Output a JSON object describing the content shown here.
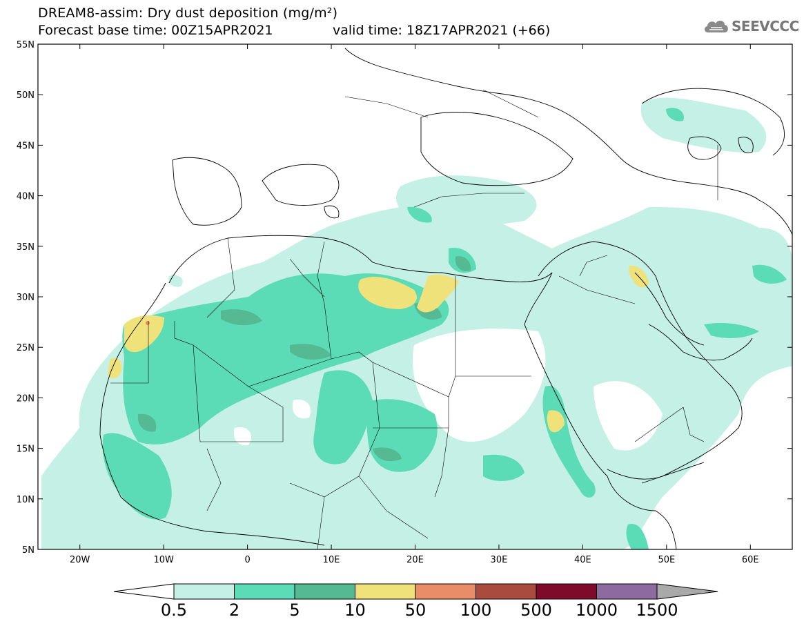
{
  "title": {
    "line1": "DREAM8-assim: Dry dust deposition (mg/m²)",
    "base_time": "Forecast base time: 00Z15APR2021",
    "valid_time": "valid time: 18Z17APR2021 (+66)"
  },
  "logo": {
    "text": "SEEVCCC",
    "icon": "cloud-icon"
  },
  "axes": {
    "x_ticks": [
      "20W",
      "10W",
      "0",
      "10E",
      "20E",
      "30E",
      "40E",
      "50E",
      "60E"
    ],
    "y_ticks": [
      "55N",
      "50N",
      "45N",
      "40N",
      "35N",
      "30N",
      "25N",
      "20N",
      "15N",
      "10N",
      "5N"
    ],
    "lon_range": [
      -25,
      65
    ],
    "lat_range": [
      5,
      55
    ]
  },
  "colorbar": {
    "labels": [
      "0.5",
      "2",
      "5",
      "10",
      "50",
      "100",
      "500",
      "1000",
      "1500"
    ],
    "colors": [
      "#c4f0e6",
      "#5cdcb6",
      "#55b994",
      "#f0e27a",
      "#e88d68",
      "#a94b3f",
      "#7e0b2a",
      "#8d6aa0",
      "#a9a9a9"
    ]
  }
}
